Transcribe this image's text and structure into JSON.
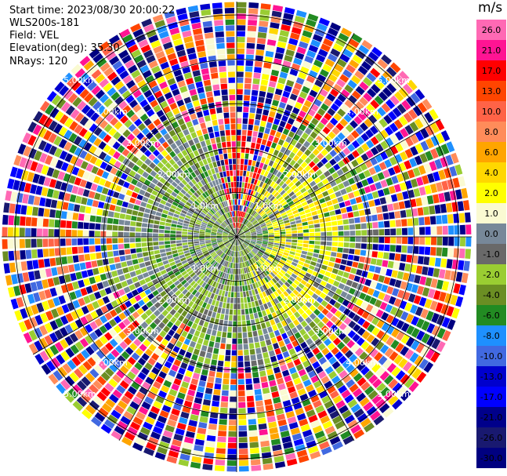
{
  "plot": {
    "start_time": "Start time: 2023/08/30 20:00:22",
    "station": "WLS200s-181",
    "field": "Field: VEL",
    "elevation": "Elevation(deg): 35.30",
    "nrays": "NRays: 120"
  },
  "range_rings": {
    "labels": [
      "1.0km",
      "2.00km",
      "3.00km",
      "4.00km",
      "5.00km"
    ],
    "max_range_km": 5.3
  },
  "colorbar": {
    "unit": "m/s",
    "ticks": [
      "26.0",
      "21.0",
      "17.0",
      "13.0",
      "10.0",
      "8.0",
      "6.0",
      "4.0",
      "2.0",
      "1.0",
      "0.0",
      "-1.0",
      "-2.0",
      "-4.0",
      "-6.0",
      "-8.0",
      "-10.0",
      "-13.0",
      "-17.0",
      "-21.0",
      "-26.0",
      "-30.0"
    ],
    "colors": [
      "#ff69b4",
      "#ff1493",
      "#ff0000",
      "#ff4500",
      "#ff6347",
      "#ff8c5a",
      "#ffa500",
      "#ffd700",
      "#ffff00",
      "#fafad2",
      "#778899",
      "#696969",
      "#9acd32",
      "#6b8e23",
      "#228b22",
      "#1e90ff",
      "#4169e1",
      "#0000cd",
      "#0000ff",
      "#00008b",
      "#191970",
      "#000080"
    ]
  }
}
